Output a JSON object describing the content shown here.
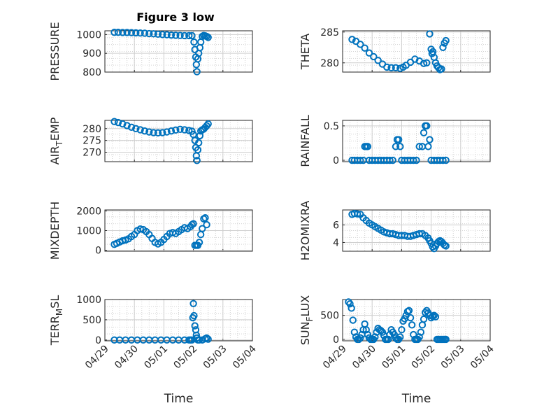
{
  "figure_title": "Figure 3 low",
  "colors": {
    "marker": "#0072BD",
    "axis": "#262626"
  },
  "chart_data": [
    {
      "type": "scatter",
      "name": "pressure",
      "ylabel": "PRESSURE",
      "ylim": [
        800,
        1020
      ],
      "yticks": [
        {
          "v": 800,
          "label": "800"
        },
        {
          "v": 900,
          "label": "900"
        },
        {
          "v": 1000,
          "label": "1000"
        }
      ],
      "xticks": [
        "",
        "",
        "",
        "",
        "",
        ""
      ],
      "xlabel": "",
      "x": [
        0.32,
        0.45,
        0.6,
        0.75,
        0.9,
        1.05,
        1.2,
        1.35,
        1.5,
        1.65,
        1.8,
        1.95,
        2.1,
        2.25,
        2.4,
        2.55,
        2.7,
        2.85,
        2.95,
        3.02,
        3.05,
        3.08,
        3.1,
        3.12,
        3.15,
        3.18,
        3.22,
        3.25,
        3.3,
        3.35,
        3.4,
        3.45,
        3.5
      ],
      "y": [
        1012,
        1012,
        1011,
        1011,
        1010,
        1009,
        1008,
        1007,
        1005,
        1004,
        1002,
        1000,
        999,
        997,
        996,
        995,
        994,
        994,
        994,
        960,
        920,
        880,
        840,
        802,
        870,
        900,
        930,
        960,
        990,
        995,
        993,
        990,
        985
      ]
    },
    {
      "type": "scatter",
      "name": "theta",
      "ylabel": "THETA",
      "ylim": [
        278.5,
        285.2
      ],
      "yticks": [
        {
          "v": 280,
          "label": "280"
        },
        {
          "v": 285,
          "label": "285"
        }
      ],
      "xticks": [
        "",
        "",
        "",
        "",
        "",
        ""
      ],
      "xlabel": "",
      "x": [
        0.32,
        0.45,
        0.6,
        0.75,
        0.9,
        1.05,
        1.2,
        1.35,
        1.5,
        1.65,
        1.8,
        1.95,
        2.05,
        2.15,
        2.3,
        2.45,
        2.6,
        2.75,
        2.85,
        2.95,
        3.0,
        3.03,
        3.06,
        3.1,
        3.15,
        3.2,
        3.25,
        3.3,
        3.35,
        3.4,
        3.45,
        3.5
      ],
      "y": [
        283.8,
        283.5,
        283.0,
        282.4,
        281.6,
        281.0,
        280.4,
        279.8,
        279.3,
        279.2,
        279.2,
        279.1,
        279.3,
        279.6,
        280.1,
        280.6,
        280.3,
        279.9,
        280.0,
        284.7,
        282.2,
        281.5,
        281.8,
        280.9,
        280.0,
        279.5,
        279.2,
        278.9,
        279.0,
        282.5,
        283.2,
        283.6
      ]
    },
    {
      "type": "scatter",
      "name": "air_temp",
      "ylabel": "AIR",
      "ylabel_sub": "T",
      "ylabel_tail": "EMP",
      "ylim": [
        266,
        283.5
      ],
      "yticks": [
        {
          "v": 270,
          "label": "270"
        },
        {
          "v": 275,
          "label": "275"
        },
        {
          "v": 280,
          "label": "280"
        }
      ],
      "xticks": [
        "",
        "",
        "",
        "",
        "",
        ""
      ],
      "xlabel": "",
      "x": [
        0.32,
        0.45,
        0.6,
        0.75,
        0.9,
        1.05,
        1.2,
        1.35,
        1.5,
        1.65,
        1.8,
        1.95,
        2.1,
        2.25,
        2.4,
        2.55,
        2.7,
        2.85,
        2.95,
        3.0,
        3.05,
        3.08,
        3.1,
        3.12,
        3.15,
        3.18,
        3.22,
        3.25,
        3.3,
        3.35,
        3.4,
        3.45,
        3.5
      ],
      "y": [
        283.0,
        282.6,
        282.0,
        281.3,
        280.6,
        280.0,
        279.5,
        279.0,
        278.6,
        278.3,
        278.2,
        278.3,
        278.6,
        279.0,
        279.4,
        279.7,
        279.5,
        279.2,
        278.9,
        277.5,
        275.0,
        272.0,
        268.5,
        266.5,
        271.0,
        274.0,
        277.0,
        279.0,
        279.5,
        279.8,
        280.5,
        281.2,
        282.0
      ]
    },
    {
      "type": "scatter",
      "name": "rainfall",
      "ylabel": "RAINFALL",
      "ylim": [
        -0.02,
        0.58
      ],
      "yticks": [
        {
          "v": 0,
          "label": "0"
        },
        {
          "v": 0.5,
          "label": "0.5"
        }
      ],
      "xticks": [
        "",
        "",
        "",
        "",
        "",
        ""
      ],
      "xlabel": "",
      "x": [
        0.32,
        0.4,
        0.5,
        0.6,
        0.7,
        0.75,
        0.8,
        0.85,
        0.9,
        1.0,
        1.1,
        1.2,
        1.3,
        1.4,
        1.5,
        1.6,
        1.7,
        1.8,
        1.85,
        1.9,
        1.95,
        2.0,
        2.1,
        2.2,
        2.3,
        2.4,
        2.5,
        2.6,
        2.7,
        2.75,
        2.8,
        2.85,
        2.9,
        2.95,
        3.0,
        3.1,
        3.2,
        3.3,
        3.4,
        3.5
      ],
      "y": [
        0,
        0,
        0,
        0,
        0,
        0.2,
        0.2,
        0.2,
        0,
        0,
        0,
        0,
        0,
        0,
        0,
        0,
        0,
        0.2,
        0.3,
        0.3,
        0.2,
        0,
        0,
        0,
        0,
        0,
        0,
        0.2,
        0.2,
        0.4,
        0.5,
        0.5,
        0.2,
        0.3,
        0,
        0,
        0,
        0,
        0,
        0
      ]
    },
    {
      "type": "scatter",
      "name": "mixdepth",
      "ylabel": "MIXDEPTH",
      "ylim": [
        -50,
        2050
      ],
      "yticks": [
        {
          "v": 0,
          "label": "0"
        },
        {
          "v": 1000,
          "label": "1000"
        },
        {
          "v": 2000,
          "label": "2000"
        }
      ],
      "xticks": [
        "",
        "",
        "",
        "",
        "",
        ""
      ],
      "xlabel": "",
      "x": [
        0.32,
        0.4,
        0.5,
        0.6,
        0.7,
        0.8,
        0.9,
        1.0,
        1.1,
        1.2,
        1.3,
        1.4,
        1.5,
        1.6,
        1.7,
        1.8,
        1.9,
        2.0,
        2.1,
        2.2,
        2.3,
        2.4,
        2.5,
        2.6,
        2.7,
        2.8,
        2.9,
        2.95,
        3.0,
        3.05,
        3.1,
        3.15,
        3.2,
        3.25,
        3.3,
        3.35,
        3.4,
        3.45
      ],
      "y": [
        300,
        350,
        420,
        480,
        520,
        580,
        700,
        800,
        1000,
        1080,
        1050,
        950,
        800,
        600,
        400,
        320,
        400,
        550,
        700,
        850,
        900,
        850,
        950,
        1050,
        1150,
        1100,
        1200,
        1300,
        1350,
        250,
        250,
        250,
        400,
        800,
        1100,
        1600,
        1650,
        1300
      ]
    },
    {
      "type": "scatter",
      "name": "h2o_mixing_ratio",
      "ylabel": "H2OMIXRA",
      "ylim": [
        3,
        7.7
      ],
      "yticks": [
        {
          "v": 4,
          "label": "4"
        },
        {
          "v": 6,
          "label": "6"
        }
      ],
      "xticks": [
        "",
        "",
        "",
        "",
        "",
        ""
      ],
      "xlabel": "",
      "x": [
        0.32,
        0.4,
        0.5,
        0.6,
        0.7,
        0.8,
        0.9,
        1.0,
        1.1,
        1.2,
        1.3,
        1.4,
        1.5,
        1.6,
        1.7,
        1.8,
        1.9,
        2.0,
        2.1,
        2.2,
        2.3,
        2.4,
        2.5,
        2.6,
        2.7,
        2.8,
        2.9,
        2.95,
        3.0,
        3.05,
        3.1,
        3.15,
        3.2,
        3.25,
        3.3,
        3.35,
        3.4,
        3.45,
        3.5
      ],
      "y": [
        7.2,
        7.3,
        7.25,
        7.2,
        6.8,
        6.5,
        6.2,
        6.0,
        5.8,
        5.6,
        5.4,
        5.2,
        5.1,
        5.0,
        5.0,
        4.9,
        4.8,
        4.8,
        4.8,
        4.7,
        4.7,
        4.8,
        4.9,
        5.0,
        5.0,
        4.8,
        4.5,
        4.2,
        3.9,
        3.5,
        3.3,
        3.6,
        3.9,
        4.1,
        4.2,
        4.1,
        3.9,
        3.7,
        3.6
      ]
    },
    {
      "type": "scatter",
      "name": "terrain_msl",
      "ylabel": "TERR",
      "ylabel_sub": "M",
      "ylabel_tail": "SL",
      "ylim": [
        -20,
        1000
      ],
      "yticks": [
        {
          "v": 0,
          "label": "0"
        },
        {
          "v": 500,
          "label": "500"
        },
        {
          "v": 1000,
          "label": "1000"
        }
      ],
      "xticks": [
        "04/29",
        "04/30",
        "05/01",
        "05/02",
        "05/03",
        "05/04"
      ],
      "xlabel": "Time",
      "x": [
        0.32,
        0.5,
        0.7,
        0.9,
        1.1,
        1.3,
        1.5,
        1.7,
        1.9,
        2.1,
        2.3,
        2.5,
        2.7,
        2.85,
        2.9,
        2.95,
        2.98,
        3.0,
        3.02,
        3.05,
        3.08,
        3.1,
        3.12,
        3.15,
        3.2,
        3.3,
        3.4,
        3.45,
        3.5
      ],
      "y": [
        0,
        0,
        0,
        0,
        0,
        0,
        0,
        0,
        0,
        0,
        0,
        0,
        0,
        0,
        0,
        0,
        550,
        900,
        600,
        350,
        250,
        120,
        50,
        0,
        0,
        0,
        30,
        50,
        20
      ]
    },
    {
      "type": "scatter",
      "name": "sun_flux",
      "ylabel": "SUN",
      "ylabel_sub": "F",
      "ylabel_tail": "LUX",
      "ylim": [
        -30,
        830
      ],
      "yticks": [
        {
          "v": 0,
          "label": "0"
        },
        {
          "v": 500,
          "label": "500"
        }
      ],
      "xticks": [
        "04/29",
        "04/30",
        "05/01",
        "05/02",
        "05/03",
        "05/04"
      ],
      "xlabel": "Time",
      "x": [
        0.2,
        0.25,
        0.3,
        0.35,
        0.4,
        0.45,
        0.5,
        0.55,
        0.6,
        0.65,
        0.7,
        0.75,
        0.8,
        0.85,
        0.9,
        0.95,
        1.0,
        1.05,
        1.1,
        1.15,
        1.2,
        1.25,
        1.3,
        1.35,
        1.4,
        1.45,
        1.5,
        1.55,
        1.6,
        1.65,
        1.7,
        1.75,
        1.8,
        1.85,
        1.9,
        1.95,
        2.0,
        2.05,
        2.1,
        2.15,
        2.2,
        2.25,
        2.3,
        2.35,
        2.4,
        2.45,
        2.5,
        2.55,
        2.6,
        2.65,
        2.7,
        2.75,
        2.8,
        2.85,
        2.9,
        2.95,
        3.0,
        3.05,
        3.1,
        3.15,
        3.2,
        3.25,
        3.3,
        3.35,
        3.4,
        3.45,
        3.5
      ],
      "y": [
        780,
        740,
        650,
        400,
        150,
        50,
        0,
        0,
        30,
        100,
        200,
        320,
        200,
        100,
        30,
        0,
        0,
        0,
        50,
        150,
        230,
        200,
        180,
        150,
        80,
        0,
        0,
        0,
        100,
        200,
        150,
        100,
        30,
        0,
        0,
        50,
        200,
        380,
        430,
        500,
        580,
        600,
        450,
        300,
        100,
        0,
        0,
        0,
        50,
        150,
        300,
        420,
        560,
        600,
        550,
        500,
        450,
        480,
        500,
        470,
        0,
        0,
        0,
        0,
        0,
        0,
        0
      ]
    }
  ]
}
